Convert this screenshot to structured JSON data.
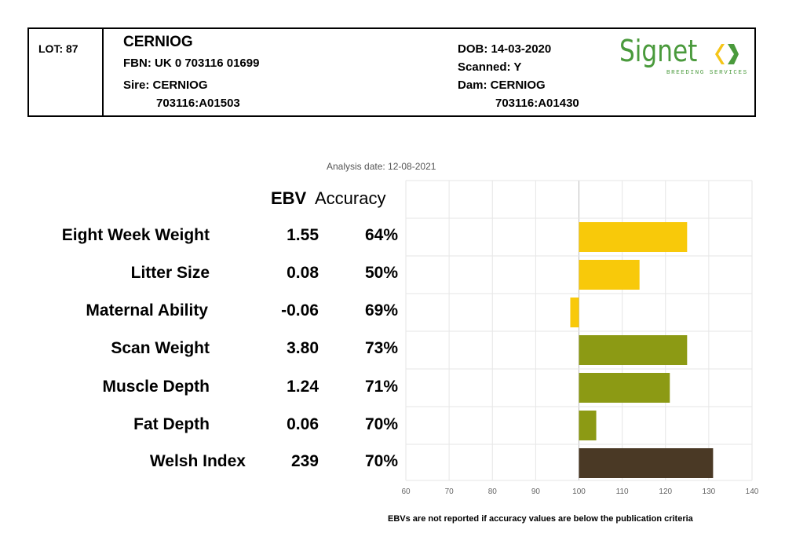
{
  "header": {
    "lot": "LOT: 87",
    "name": "CERNIOG",
    "fbn": "FBN: UK 0 703116 01699",
    "sire_label": "Sire: CERNIOG",
    "sire_id": "703116:A01503",
    "dob": "DOB: 14-03-2020",
    "scanned": "Scanned: Y",
    "dam_label": "Dam: CERNIOG",
    "dam_id": "703116:A01430"
  },
  "logo": {
    "word": "Signet",
    "subtitle": "BREEDING SERVICES",
    "green": "#4a9a3c",
    "yellow": "#f5c518"
  },
  "analysis_date": "Analysis date: 12-08-2021",
  "columns": {
    "ebv": "EBV",
    "accuracy": "Accuracy"
  },
  "footnote": "EBVs are not reported if accuracy values are below the publication criteria",
  "colors": {
    "yellow": "#f8c90a",
    "olive": "#8c9a14",
    "brown": "#4a3925",
    "grid": "#e6e6e6",
    "axis": "#bbbbbb"
  },
  "chart_data": {
    "type": "bar",
    "orientation": "horizontal",
    "baseline": 100,
    "xlim": [
      60,
      140
    ],
    "xticks": [
      60,
      70,
      80,
      90,
      100,
      110,
      120,
      130,
      140
    ],
    "grid": true,
    "categories": [
      "Eight Week Weight",
      "Litter Size",
      "Maternal Ability",
      "Scan Weight",
      "Muscle Depth",
      "Fat Depth",
      "Welsh Index"
    ],
    "ebv": [
      "1.55",
      "0.08",
      "-0.06",
      "3.80",
      "1.24",
      "0.06",
      "239"
    ],
    "accuracy": [
      "64%",
      "50%",
      "69%",
      "73%",
      "71%",
      "70%",
      "70%"
    ],
    "values": [
      125,
      114,
      98,
      125,
      121,
      104,
      131
    ],
    "bar_colors": [
      "yellow",
      "yellow",
      "yellow",
      "olive",
      "olive",
      "olive",
      "brown"
    ]
  }
}
